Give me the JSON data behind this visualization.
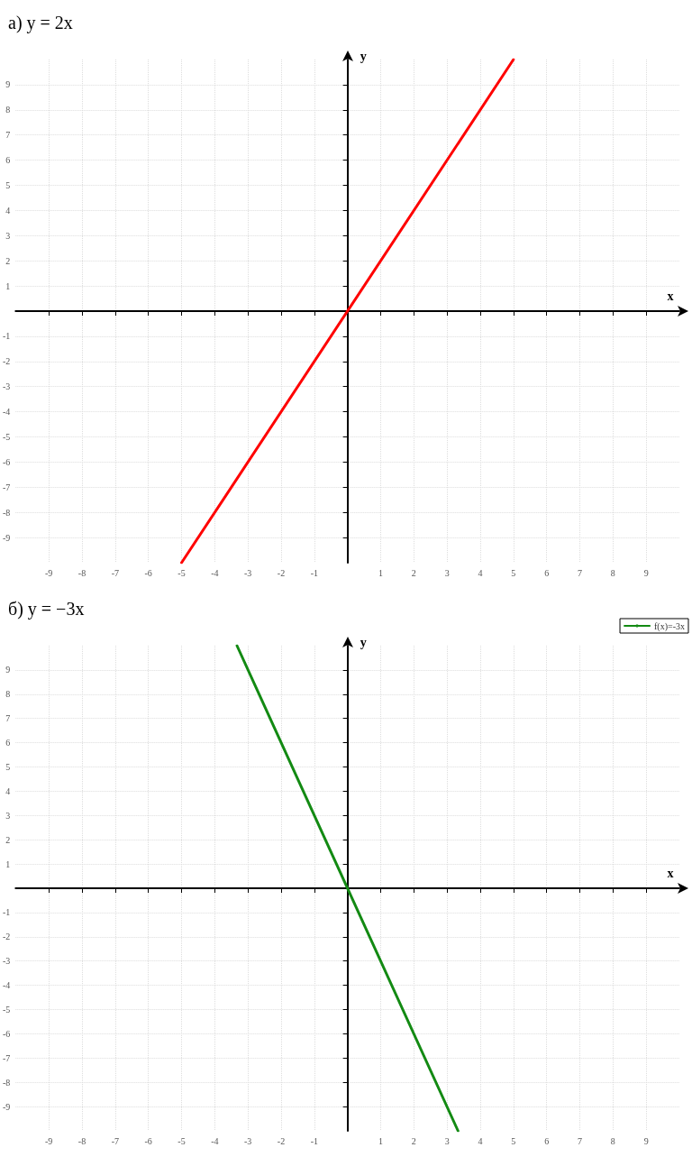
{
  "chart_data": [
    {
      "type": "line",
      "title": "а) y = 2x",
      "xlabel": "x",
      "ylabel": "y",
      "series": [
        {
          "color": "#ff0000",
          "x": [
            -5,
            5
          ],
          "values": [
            -10,
            10
          ]
        }
      ],
      "xlim": [
        -10,
        10
      ],
      "ylim": [
        -10,
        10
      ],
      "xticks": [
        -9,
        -8,
        -7,
        -6,
        -5,
        -4,
        -3,
        -2,
        -1,
        1,
        2,
        3,
        4,
        5,
        6,
        7,
        8,
        9
      ],
      "yticks": [
        -9,
        -8,
        -7,
        -6,
        -5,
        -4,
        -3,
        -2,
        -1,
        1,
        2,
        3,
        4,
        5,
        6,
        7,
        8,
        9
      ],
      "grid": true,
      "marker": "none",
      "line_style": "solid"
    },
    {
      "type": "line",
      "title": "б) y = −3x",
      "xlabel": "x",
      "ylabel": "y",
      "series": [
        {
          "name": "f(x)=-3x",
          "color": "#138a13",
          "x": [
            -3.33,
            3.33
          ],
          "values": [
            10,
            -10
          ]
        }
      ],
      "xlim": [
        -10,
        10
      ],
      "ylim": [
        -10,
        10
      ],
      "xticks": [
        -9,
        -8,
        -7,
        -6,
        -5,
        -4,
        -3,
        -2,
        -1,
        1,
        2,
        3,
        4,
        5,
        6,
        7,
        8,
        9
      ],
      "yticks": [
        -9,
        -8,
        -7,
        -6,
        -5,
        -4,
        -3,
        -2,
        -1,
        1,
        2,
        3,
        4,
        5,
        6,
        7,
        8,
        9
      ],
      "grid": true,
      "legend": "top right",
      "marker": "none",
      "line_style": "solid"
    }
  ]
}
